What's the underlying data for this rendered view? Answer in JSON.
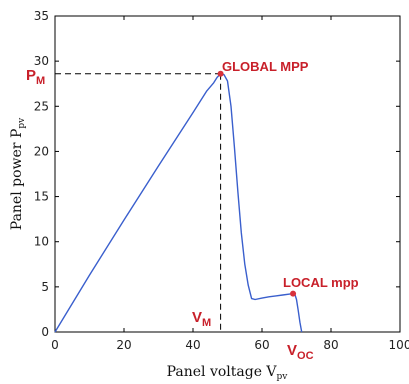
{
  "chart_data": {
    "type": "line",
    "xlabel": "Panel voltage V",
    "xlabel_sub": "pv",
    "ylabel": "Panel power P",
    "ylabel_sub": "pv",
    "xlim": [
      0,
      100
    ],
    "ylim": [
      0,
      35
    ],
    "xticks": [
      0,
      20,
      40,
      60,
      80,
      100
    ],
    "yticks": [
      0,
      5,
      10,
      15,
      20,
      25,
      30,
      35
    ],
    "grid": false,
    "series": [
      {
        "x": [
          0,
          10,
          20,
          30,
          40,
          44,
          46,
          47,
          48,
          49,
          50,
          51,
          52,
          53,
          54,
          55,
          56,
          57,
          58,
          60,
          62,
          64,
          66,
          68,
          69,
          69.5,
          70,
          70.5,
          71,
          71.5
        ],
        "y": [
          0,
          6.3,
          12.4,
          18.4,
          24.3,
          26.7,
          27.6,
          28.2,
          28.6,
          28.5,
          27.8,
          25,
          20.5,
          15.5,
          11,
          7.5,
          5.2,
          3.7,
          3.6,
          3.75,
          3.9,
          4.0,
          4.1,
          4.2,
          4.25,
          4.2,
          3.6,
          2.4,
          1.1,
          0
        ]
      }
    ],
    "annotations": {
      "global_mpp": {
        "label": "GLOBAL MPP",
        "x": 48,
        "y": 28.6
      },
      "local_mpp": {
        "label": "LOCAL mpp",
        "x": 69,
        "y": 4.25
      },
      "pm_label": "P",
      "pm_sub": "M",
      "vm_label": "V",
      "vm_sub": "M",
      "voc_label": "V",
      "voc_sub": "OC",
      "voc_x": 71.5
    },
    "colors": {
      "curve": "#3a5fcd",
      "marker": "#d8323c",
      "annotation": "#c8202a",
      "axis": "#000000",
      "guide": "#000000"
    }
  }
}
